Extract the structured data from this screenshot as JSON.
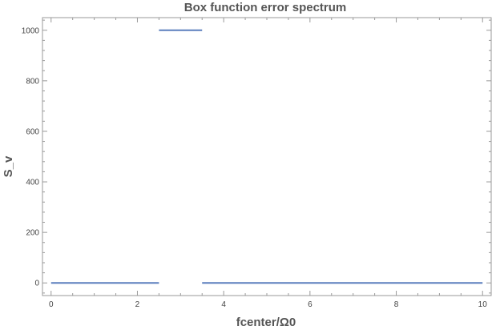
{
  "chart_data": {
    "type": "line",
    "title": "Box function error spectrum",
    "xlabel": "fcenter/Ω0",
    "ylabel": "S_v",
    "xlim": [
      -0.2,
      10.2
    ],
    "ylim": [
      -50,
      1050
    ],
    "xticks": [
      0,
      2,
      4,
      6,
      8,
      10
    ],
    "yticks": [
      0,
      200,
      400,
      600,
      800,
      1000
    ],
    "grid": false,
    "color": "#5b7fbd",
    "segments": [
      {
        "x": [
          0,
          2.5
        ],
        "y": [
          0,
          0
        ]
      },
      {
        "x": [
          2.5,
          3.5
        ],
        "y": [
          1000,
          1000
        ]
      },
      {
        "x": [
          3.5,
          10
        ],
        "y": [
          0,
          0
        ]
      }
    ]
  }
}
